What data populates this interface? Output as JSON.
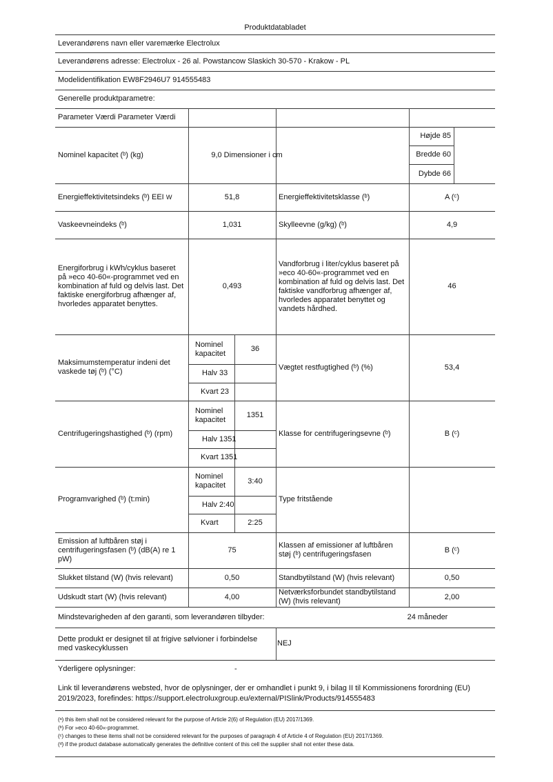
{
  "title": "Produktdatabladet",
  "supplier_name": "Leverandørens navn eller varemærke Electrolux",
  "supplier_address": "Leverandørens adresse: Electrolux - 26 al. Powstancow Slaskich 30-570 - Krakow - PL",
  "model": "Modelidentifikation EW8F2946U7 914555483",
  "general": "Generelle produktparametre:",
  "param_header": "Parameter Værdi Parameter Værdi",
  "rows": {
    "capacity": {
      "label": "Nominel kapacitet (ᵇ) (kg)",
      "value": "9,0 Dimensioner i cm",
      "height": "Højde 85",
      "width": "Bredde 60",
      "depth": "Dybde 66"
    },
    "eei": {
      "label": "Energieffektivitetsindeks (ᵇ) EEI",
      "sub": "W",
      "value": "51,8",
      "label2": "Energieffektivitetsklasse (ᵇ)",
      "value2": "A (ᶜ)"
    },
    "wash": {
      "label": "Vaskeevneindeks (ᵇ)",
      "value": "1,031",
      "label2": "Skylleevne (g/kg) (ᵇ)",
      "value2": "4,9"
    },
    "energy": {
      "label": "Energiforbrug i kWh/cyklus baseret på »eco 40-60«-programmet ved en kombination af fuld og delvis last. Det faktiske energiforbrug afhænger af, hvorledes apparatet benyttes.",
      "value": "0,493",
      "label2": "Vandforbrug i liter/cyklus baseret på »eco 40-60«-programmet ved en kombination af fuld og delvis last. Det faktiske vandforbrug afhænger af, hvorledes apparatet benyttet og vandets hårdhed.",
      "value2": "46"
    },
    "temp": {
      "label": "Maksimumstemperatur indeni det vaskede tøj (ᵇ) (°C)",
      "nominal_label": "Nominel kapacitet",
      "nominal": "36",
      "half": "Halv 33",
      "quarter": "Kvart 23",
      "label2": "Vægtet restfugtighed (ᵇ) (%)",
      "value2": "53,4"
    },
    "spin": {
      "label": "Centrifugeringshastighed (ᵇ) (rpm)",
      "nominal_label": "Nominel kapacitet",
      "nominal": "1351",
      "half": "Halv 1351",
      "quarter": "Kvart 1351",
      "label2": "Klasse for centrifugeringsevne (ᵇ)",
      "value2": "B (ᶜ)"
    },
    "duration": {
      "label": "Programvarighed (ᵇ) (t:min)",
      "nominal_label": "Nominel kapacitet",
      "nominal": "3:40",
      "half": "Halv 2:40",
      "quarter_label": "Kvart",
      "quarter": "2:25",
      "label2": "Type fritstående"
    },
    "noise": {
      "label": "Emission af luftbåren støj i centrifugeringsfasen (ᵇ) (dB(A) re 1 pW)",
      "value": "75",
      "label2": "Klassen af emissioner af luftbåren støj (ᵇ) centrifugeringsfasen",
      "value2": "B (ᶜ)"
    },
    "off": {
      "label": "Slukket tilstand (W) (hvis relevant)",
      "value": "0,50",
      "label2": "Standbytilstand (W) (hvis relevant)",
      "value2": "0,50"
    },
    "delay": {
      "label": "Udskudt start (W) (hvis relevant)",
      "value": "4,00",
      "label2": "Netværksforbundet standbytilstand (W) (hvis relevant)",
      "value2": "2,00"
    },
    "warranty": {
      "label": "Mindstevarigheden af den garanti, som leverandøren tilbyder:",
      "value": "24 måneder"
    },
    "silver": {
      "label": "Dette produkt er designet til at frigive sølvioner i forbindelse med vaskecyklussen",
      "value": "NEJ"
    }
  },
  "additional": {
    "label": "Yderligere oplysninger:",
    "value": "-"
  },
  "link": "Link til leverandørens websted, hvor de oplysninger, der er omhandlet i punkt 9, i bilag II til Kommissionens forordning (EU) 2019/2023, forefindes: https://support.electroluxgroup.eu/external/PISlink/Products/914555483",
  "footnotes": [
    "(ᵃ) this item shall not be considered relevant for the purpose of Article 2(6) of Regulation (EU) 2017/1369.",
    "(ᵇ) For »eco 40-60«-programmet.",
    "(ᶜ) changes to these items shall not be considered relevant for the purposes of paragraph 4 of Article 4 of Regulation (EU) 2017/1369.",
    "(ᵈ) if the product database automatically generates the definitive content of this cell the supplier shall not enter these data."
  ]
}
